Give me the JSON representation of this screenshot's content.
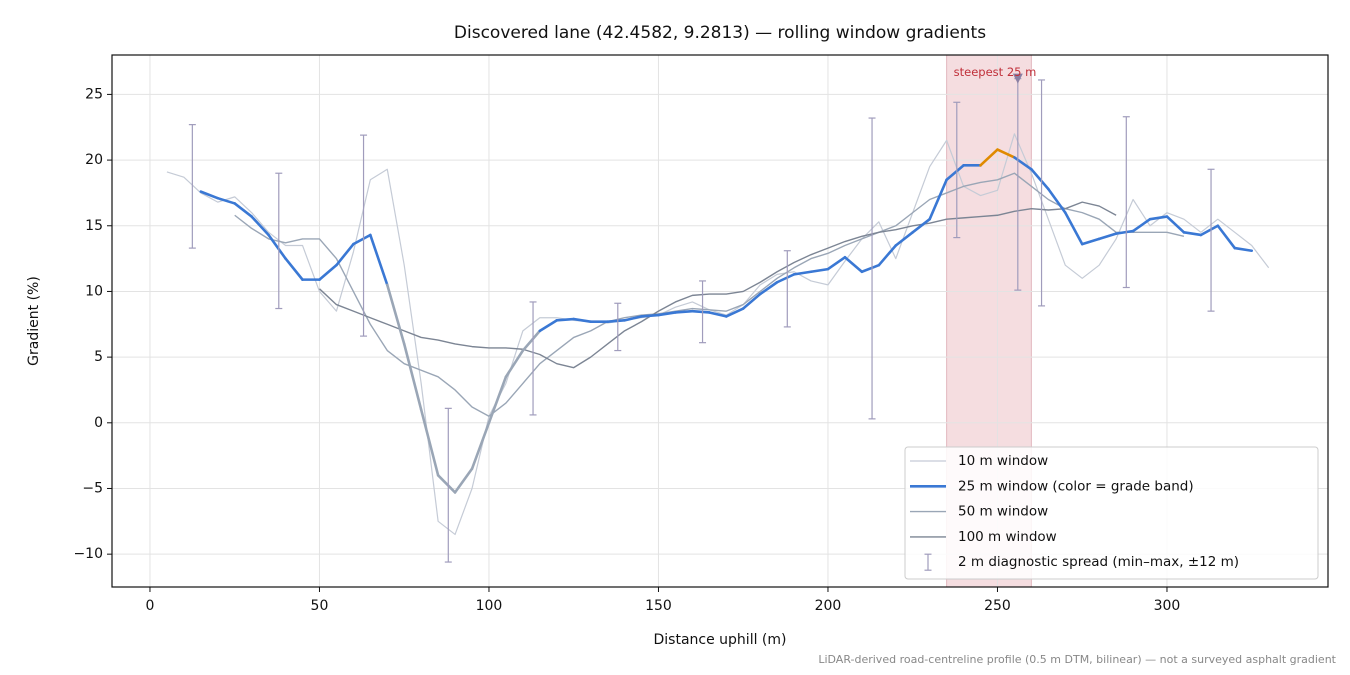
{
  "chart_data": {
    "type": "line",
    "title": "Discovered lane (42.4582, 9.2813) — rolling window gradients",
    "xlabel": "Distance uphill (m)",
    "ylabel": "Gradient (%)",
    "footnote": "LiDAR-derived road-centreline profile (0.5 m DTM, bilinear) — not a surveyed asphalt gradient",
    "xlim": [
      -11.2,
      347.5
    ],
    "ylim": [
      -12.5,
      28
    ],
    "xticks": [
      0,
      50,
      100,
      150,
      200,
      250,
      300
    ],
    "yticks": [
      {
        "value": -10,
        "label": "−10"
      },
      {
        "value": -5,
        "label": "−5"
      },
      0,
      5,
      10,
      15,
      20,
      25
    ],
    "grid": true,
    "legend": "lower right",
    "x": [
      5,
      10,
      15,
      20,
      25,
      30,
      35,
      40,
      45,
      50,
      55,
      60,
      65,
      70,
      75,
      80,
      85,
      90,
      95,
      100,
      105,
      110,
      115,
      120,
      125,
      130,
      135,
      140,
      145,
      150,
      155,
      160,
      165,
      170,
      175,
      180,
      185,
      190,
      195,
      200,
      205,
      210,
      215,
      220,
      225,
      230,
      235,
      240,
      245,
      250,
      255,
      260,
      265,
      270,
      275,
      280,
      285,
      290,
      295,
      300,
      305,
      310,
      315,
      320,
      325,
      330
    ],
    "series": [
      {
        "name": "10 m window",
        "color": "#c5cbd6",
        "width": 1.2,
        "values": [
          19.1,
          18.7,
          17.5,
          16.8,
          17.2,
          16,
          14.5,
          13.5,
          13.5,
          10,
          8.5,
          13,
          18.5,
          19.3,
          12,
          3,
          -7.5,
          -8.5,
          -5,
          0.5,
          3,
          7,
          8,
          8,
          7.8,
          7.7,
          7.6,
          7.8,
          8,
          8.2,
          8.8,
          9.2,
          8.6,
          8.2,
          9,
          10.5,
          11.3,
          11.5,
          10.8,
          10.5,
          12.3,
          14,
          15.3,
          12.5,
          16,
          19.5,
          21.5,
          18,
          17.3,
          17.7,
          22,
          19,
          15.5,
          12,
          11,
          12,
          14,
          17,
          15,
          16,
          15.5,
          14.5,
          15.5,
          14.5,
          13.5,
          11.8
        ]
      },
      {
        "name": "25 m window (color = grade band)",
        "color": "#3a78d4",
        "width": 2.6,
        "values": [
          null,
          null,
          17.6,
          17.1,
          16.7,
          15.7,
          14.3,
          12.5,
          10.9,
          10.9,
          12,
          13.6,
          14.3,
          10.5,
          6,
          1,
          -4,
          -5.3,
          -3.5,
          0,
          3.5,
          5.5,
          7,
          7.8,
          7.9,
          7.7,
          7.7,
          7.8,
          8.1,
          8.2,
          8.4,
          8.5,
          8.4,
          8.1,
          8.7,
          9.8,
          10.7,
          11.3,
          11.5,
          11.7,
          12.6,
          11.5,
          12,
          13.5,
          14.5,
          15.5,
          18.5,
          19.6,
          19.6,
          20.8,
          20.2,
          19.3,
          17.8,
          16,
          13.6,
          14,
          14.4,
          14.6,
          15.5,
          15.7,
          14.5,
          14.3,
          15,
          13.3,
          13.1,
          null
        ],
        "colors": [
          "#3a78d4",
          "#3a78d4",
          "#3a78d4",
          "#3a78d4",
          "#3a78d4",
          "#3a78d4",
          "#3a78d4",
          "#3a78d4",
          "#3a78d4",
          "#3a78d4",
          "#3a78d4",
          "#3a78d4",
          "#3a78d4",
          "#9aa6b6",
          "#9aa6b6",
          "#9aa6b6",
          "#9aa6b6",
          "#9aa6b6",
          "#9aa6b6",
          "#9aa6b6",
          "#9aa6b6",
          "#9aa6b6",
          "#3a78d4",
          "#3a78d4",
          "#3a78d4",
          "#3a78d4",
          "#3a78d4",
          "#3a78d4",
          "#3a78d4",
          "#3a78d4",
          "#3a78d4",
          "#3a78d4",
          "#3a78d4",
          "#3a78d4",
          "#3a78d4",
          "#3a78d4",
          "#3a78d4",
          "#3a78d4",
          "#3a78d4",
          "#3a78d4",
          "#3a78d4",
          "#3a78d4",
          "#3a78d4",
          "#3a78d4",
          "#3a78d4",
          "#3a78d4",
          "#3a78d4",
          "#3a78d4",
          "#e08a00",
          "#e08a00",
          "#3a78d4",
          "#3a78d4",
          "#3a78d4",
          "#3a78d4",
          "#3a78d4",
          "#3a78d4",
          "#3a78d4",
          "#3a78d4",
          "#3a78d4",
          "#3a78d4",
          "#3a78d4",
          "#3a78d4",
          "#3a78d4",
          "#3a78d4",
          "#3a78d4",
          "#3a78d4"
        ]
      },
      {
        "name": "50 m window",
        "color": "#9aa6b6",
        "width": 1.4,
        "values": [
          null,
          null,
          null,
          null,
          15.8,
          14.8,
          14,
          13.7,
          14,
          14,
          12.5,
          10,
          7.5,
          5.5,
          4.5,
          4,
          3.5,
          2.5,
          1.2,
          0.5,
          1.5,
          3,
          4.5,
          5.5,
          6.5,
          7,
          7.7,
          8,
          8.2,
          8.3,
          8.5,
          8.7,
          8.6,
          8.5,
          9,
          10,
          11,
          11.8,
          12.5,
          12.9,
          13.5,
          14,
          14.5,
          15,
          16,
          17,
          17.5,
          18,
          18.3,
          18.5,
          19,
          18,
          17,
          16.3,
          16,
          15.5,
          14.5,
          14.5,
          14.5,
          14.5,
          14.2,
          null,
          null,
          null,
          null,
          null
        ]
      },
      {
        "name": "100 m window",
        "color": "#7c8594",
        "width": 1.4,
        "values": [
          null,
          null,
          null,
          null,
          null,
          null,
          null,
          null,
          null,
          10.2,
          9,
          8.5,
          8,
          7.5,
          7,
          6.5,
          6.3,
          6,
          5.8,
          5.7,
          5.7,
          5.6,
          5.2,
          4.5,
          4.2,
          5,
          6,
          7,
          7.7,
          8.5,
          9.2,
          9.7,
          9.8,
          9.8,
          10,
          10.7,
          11.5,
          12.2,
          12.8,
          13.3,
          13.8,
          14.2,
          14.5,
          14.7,
          15,
          15.2,
          15.5,
          15.6,
          15.7,
          15.8,
          16.1,
          16.3,
          16.2,
          16.3,
          16.8,
          16.5,
          15.8,
          null,
          null,
          null,
          null,
          null,
          null,
          null,
          null,
          null
        ]
      }
    ],
    "errorbars": {
      "name": "2 m diagnostic spread (min–max, ±12 m)",
      "color": "#a09cbc",
      "x": [
        12.5,
        38,
        63,
        88,
        113,
        138,
        163,
        188,
        213,
        238,
        256,
        263,
        288,
        313
      ],
      "min": [
        13.3,
        8.7,
        6.6,
        -10.6,
        0.6,
        5.5,
        6.1,
        7.3,
        0.3,
        14.1,
        10.1,
        8.9,
        10.3,
        8.5
      ],
      "max": [
        22.7,
        19,
        21.9,
        1.1,
        9.2,
        9.1,
        10.8,
        13.1,
        23.2,
        24.4,
        26.2,
        26.1,
        23.3,
        19.3
      ]
    },
    "highlight": {
      "xmin": 235,
      "xmax": 260,
      "color": "#f5dde0",
      "edge": "#e2b8bf"
    },
    "marker": {
      "x": 256,
      "y": 26.2,
      "color": "#8a7fa3"
    },
    "annotation": {
      "text": "steepest 25 m",
      "color": "#c0303a"
    }
  }
}
